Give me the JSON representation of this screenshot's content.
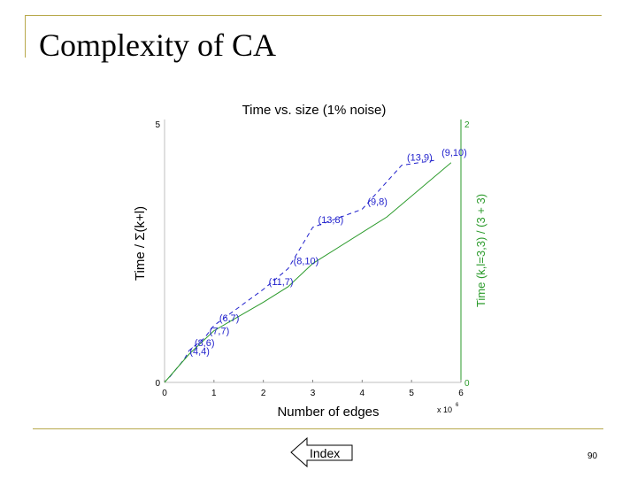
{
  "slide": {
    "title": "Complexity of CA",
    "index_label": "Index",
    "page_number": "90"
  },
  "colors": {
    "accent_rule": "#b8a94c",
    "blue_series": "#1f1fcc",
    "green_series": "#2a9a2a"
  },
  "chart_data": {
    "type": "line",
    "title": "Time vs. size (1% noise)",
    "xlabel": "Number of edges",
    "x_multiplier": "x 10",
    "x_multiplier_exp": "6",
    "ylabel": "Time / Σ(k+l)",
    "ylabel2": "Time (k,l=3,3) / (3 + 3)",
    "xlim": [
      0,
      6
    ],
    "ylim": [
      0,
      5
    ],
    "ylim2": [
      0,
      2
    ],
    "xticks": [
      "0",
      "1",
      "2",
      "3",
      "4",
      "5",
      "6"
    ],
    "yticks": [
      "0",
      "5"
    ],
    "yticks2": [
      "0",
      "2"
    ],
    "grid": false,
    "series": [
      {
        "axis": "left",
        "style": "dashed",
        "color": "#1f1fcc",
        "points": [
          {
            "x": 0.1,
            "y": 0.1
          },
          {
            "x": 0.4,
            "y": 0.45,
            "label": "(4,4)"
          },
          {
            "x": 0.5,
            "y": 0.62,
            "label": "(8,6)"
          },
          {
            "x": 0.8,
            "y": 0.85,
            "label": "(7,7)"
          },
          {
            "x": 1.0,
            "y": 1.1,
            "label": "(6,7)"
          },
          {
            "x": 2.0,
            "y": 1.8,
            "label": "(11,7)"
          },
          {
            "x": 2.5,
            "y": 2.2,
            "label": "(8,10)"
          },
          {
            "x": 3.0,
            "y": 3.0,
            "label": "(13,8)"
          },
          {
            "x": 4.0,
            "y": 3.35,
            "label": "(9,8)"
          },
          {
            "x": 4.8,
            "y": 4.2,
            "label": "(13,9)"
          },
          {
            "x": 5.5,
            "y": 4.3,
            "label": "(9,10)"
          }
        ]
      },
      {
        "axis": "right",
        "style": "solid",
        "color": "#2a9a2a",
        "points": [
          {
            "x": 0.0,
            "y": 0.0
          },
          {
            "x": 0.5,
            "y": 0.22
          },
          {
            "x": 1.0,
            "y": 0.4
          },
          {
            "x": 2.0,
            "y": 0.62
          },
          {
            "x": 2.5,
            "y": 0.74
          },
          {
            "x": 3.0,
            "y": 0.92
          },
          {
            "x": 4.5,
            "y": 1.28
          },
          {
            "x": 5.8,
            "y": 1.7
          }
        ]
      }
    ]
  }
}
